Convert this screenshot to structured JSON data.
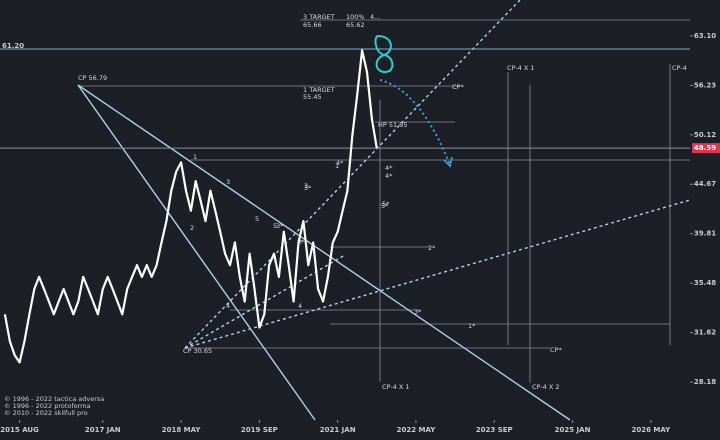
{
  "chart_data": {
    "type": "line",
    "x": [
      "2015-05",
      "2015-06",
      "2015-07",
      "2015-08",
      "2015-09",
      "2015-10",
      "2015-11",
      "2015-12",
      "2016-01",
      "2016-02",
      "2016-03",
      "2016-04",
      "2016-05",
      "2016-06",
      "2016-07",
      "2016-08",
      "2016-09",
      "2016-10",
      "2016-11",
      "2016-12",
      "2017-01",
      "2017-02",
      "2017-03",
      "2017-04",
      "2017-05",
      "2017-06",
      "2017-07",
      "2017-08",
      "2017-09",
      "2017-10",
      "2017-11",
      "2017-12",
      "2018-01",
      "2018-02",
      "2018-03",
      "2018-04",
      "2018-05",
      "2018-06",
      "2018-07",
      "2018-08",
      "2018-09",
      "2018-10",
      "2018-11",
      "2018-12",
      "2019-01",
      "2019-02",
      "2019-03",
      "2019-04",
      "2019-05",
      "2019-06",
      "2019-07",
      "2019-08",
      "2019-09",
      "2019-10",
      "2019-11",
      "2019-12",
      "2020-01",
      "2020-02",
      "2020-03",
      "2020-04",
      "2020-05",
      "2020-06",
      "2020-07",
      "2020-08",
      "2020-09",
      "2020-10",
      "2020-11",
      "2020-12",
      "2021-01",
      "2021-02",
      "2021-03",
      "2021-04",
      "2021-05",
      "2021-06",
      "2021-07",
      "2021-08",
      "2021-09"
    ],
    "series": [
      {
        "color": "#ffffff",
        "values": [
          33,
          31,
          30,
          29.5,
          31,
          33,
          35,
          36,
          35,
          34,
          33,
          34,
          35,
          34,
          33,
          34,
          36,
          35,
          34,
          33,
          35,
          36,
          35,
          34,
          33,
          35,
          36,
          37,
          36,
          37,
          36,
          37,
          39,
          41,
          44,
          46,
          47,
          44,
          42,
          45,
          43,
          41,
          44,
          42,
          40,
          38,
          37,
          39,
          36,
          34,
          38,
          35,
          32,
          33,
          37,
          38,
          36,
          40,
          37,
          34,
          39,
          41,
          37,
          39,
          35,
          34,
          36,
          39,
          40,
          42,
          44,
          50,
          55,
          61,
          58,
          52,
          48.59
        ]
      }
    ],
    "xlim": [
      "2015-04",
      "2027-01"
    ],
    "xticks": [
      {
        "value": "2015-08",
        "label": "2015 AUG"
      },
      {
        "value": "2017-01",
        "label": "2017 JAN"
      },
      {
        "value": "2018-05",
        "label": "2018 MAY"
      },
      {
        "value": "2019-09",
        "label": "2019 SEP"
      },
      {
        "value": "2021-01",
        "label": "2021 JAN"
      },
      {
        "value": "2022-05",
        "label": "2022 MAY"
      },
      {
        "value": "2023-09",
        "label": "2023 SEP"
      },
      {
        "value": "2025-01",
        "label": "2025 JAN"
      },
      {
        "value": "2026-05",
        "label": "2026 MAY"
      }
    ],
    "ylim": [
      25.8,
      68.6
    ],
    "yticks": [
      {
        "value": 63.1,
        "label": "63.10"
      },
      56.23,
      50.12,
      44.67,
      39.81,
      35.48,
      31.62,
      28.18
    ],
    "log_scale_y": true,
    "level_lines": [
      {
        "value": 61.2,
        "label": "61.20",
        "color": "#e0b040",
        "line_color": "#6fb3d9",
        "side": "left"
      },
      {
        "value": 48.59,
        "color": "#e0364f",
        "line_color": "#8a8f99",
        "side": "right"
      }
    ],
    "annotations": [
      "3 TARGET",
      "65.66",
      "100%",
      "4...",
      "65.62",
      "1 TARGET",
      "55.45",
      "HP 51.95",
      "CP 56.79",
      "CP 30.65",
      "CP*",
      "CP-4 X 1",
      "CP-4",
      "CP*",
      "CP-4 X 1",
      "CP-4 X 2",
      "1",
      "2",
      "3",
      "4",
      "5",
      "1",
      "2",
      "3",
      "4",
      "5",
      "3*",
      "4*",
      "5*",
      "2*",
      "1*",
      "3*",
      "4*",
      "3*",
      "2*",
      "4*",
      "5*"
    ],
    "copyright": [
      "© 1996 - 2022 tactica adversa",
      "© 1996 - 2022 protoforma",
      "© 2010 - 2022 skilfull pro"
    ]
  }
}
